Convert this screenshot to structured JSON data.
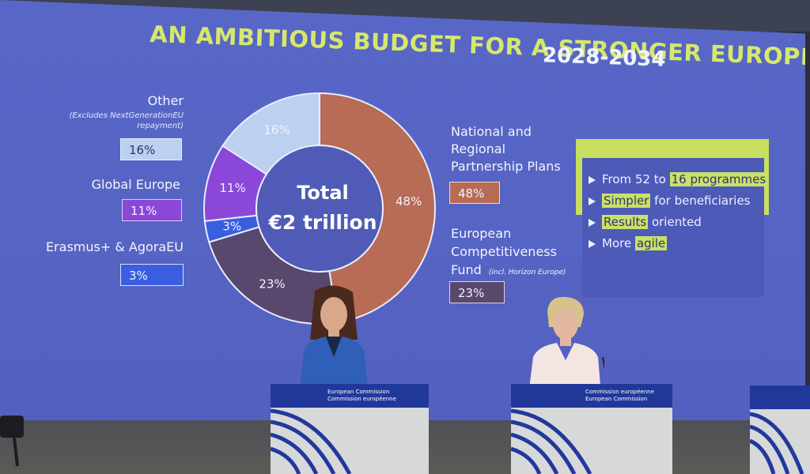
{
  "slide": {
    "title": "AN AMBITIOUS BUDGET FOR A STRONGER EUROPE",
    "years": "2028-2034",
    "colors": {
      "background": "#5664c4",
      "title": "#d6e86a",
      "national": "#b86b55",
      "competitiveness": "#59486e",
      "erasmus": "#3a5ee0",
      "global": "#8b47d8",
      "other": "#bcd0f0"
    },
    "total_line1": "Total",
    "total_line2": "€2 trillion",
    "left_legend": {
      "other_label": "Other",
      "other_note": "(Excludes NextGenerationEU repayment)",
      "other_pct": "16%",
      "global_label": "Global Europe",
      "global_pct": "11%",
      "erasmus_label": "Erasmus+ & AgoraEU",
      "erasmus_pct": "3%"
    },
    "right_legend": {
      "national_label_1": "National and",
      "national_label_2": "Regional",
      "national_label_3": "Partnership Plans",
      "national_pct": "48%",
      "comp_label_1": "European",
      "comp_label_2": "Competitiveness",
      "comp_label_3": "Fund",
      "comp_note": "(incl. Horizon Europe)",
      "comp_pct": "23%"
    },
    "donut_slices": [
      {
        "name": "National and Regional Partnership Plans",
        "percent": 48,
        "label": "48%"
      },
      {
        "name": "European Competitiveness Fund",
        "percent": 23,
        "label": "23%"
      },
      {
        "name": "Erasmus+ & AgoraEU",
        "percent": 3,
        "label": "3%"
      },
      {
        "name": "Global Europe",
        "percent": 11,
        "label": "11%"
      },
      {
        "name": "Other",
        "percent": 16,
        "label": "16%"
      }
    ],
    "highlights": {
      "item1_pre": "From 52 to",
      "item1_hi": "16 programmes",
      "item2_hi": "Simpler",
      "item2_post": "for beneficiaries",
      "item3_hi": "Results",
      "item3_post": "oriented",
      "item4_pre": "More",
      "item4_hi": "agile"
    }
  },
  "podiums": {
    "left_line1": "European Commission",
    "left_line2": "Commission européenne",
    "center_line1": "Commission européenne",
    "center_line2": "European Commission"
  }
}
